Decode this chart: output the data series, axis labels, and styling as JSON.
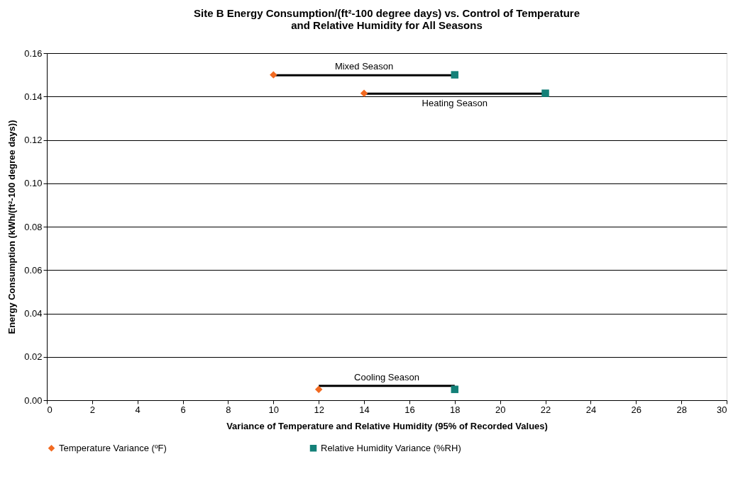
{
  "chart_data": {
    "type": "scatter",
    "title": "Site B Energy Consumption/(ft²-100 degree days) vs. Control of Temperature and Relative Humidity for All Seasons",
    "xlabel": "Variance of Temperature and Relative Humidity (95% of Recorded Values)",
    "ylabel": "Energy Consumption (kWh/(ft²-100 degree days))",
    "series": [
      {
        "name": "Temperature Variance (ºF)",
        "color": "#f26a21",
        "marker": "diamond",
        "x": [
          10,
          14,
          12
        ],
        "values": [
          0.15,
          0.1415,
          0.005
        ]
      },
      {
        "name": "Relative Humidity Variance (%RH)",
        "color": "#138078",
        "marker": "square",
        "x": [
          18,
          22,
          18
        ],
        "values": [
          0.15,
          0.1415,
          0.005
        ]
      },
      {
        "type": "line",
        "color": "#000000",
        "marker": "none",
        "line_style": "solid",
        "x": [
          10,
          18
        ],
        "values": [
          0.1498,
          0.1498
        ]
      },
      {
        "type": "line",
        "color": "#000000",
        "marker": "none",
        "line_style": "solid",
        "x": [
          14,
          22
        ],
        "values": [
          0.1413,
          0.1413
        ]
      },
      {
        "type": "line",
        "color": "#000000",
        "marker": "none",
        "line_style": "solid",
        "x": [
          12,
          18
        ],
        "values": [
          0.0066,
          0.0066
        ]
      }
    ],
    "annotations": [
      {
        "text": "Mixed Season",
        "x": 14,
        "y": 0.1498
      },
      {
        "text": "Heating Season",
        "x": 18,
        "y": 0.1413
      },
      {
        "text": "Cooling Season",
        "x": 15,
        "y": 0.0066
      }
    ],
    "xlim": [
      0,
      30
    ],
    "xticks": [
      0,
      2,
      4,
      6,
      8,
      10,
      12,
      14,
      16,
      18,
      20,
      22,
      24,
      26,
      28,
      30
    ],
    "ylim": [
      0,
      0.16
    ],
    "yticks": [
      {
        "value": 0,
        "label": "0.00"
      },
      {
        "value": 0.02,
        "label": "0.02"
      },
      {
        "value": 0.04,
        "label": "0.04"
      },
      {
        "value": 0.06,
        "label": "0.06"
      },
      {
        "value": 0.08,
        "label": "0.08"
      },
      {
        "value": 0.1,
        "label": "0.10"
      },
      {
        "value": 0.12,
        "label": "0.12"
      },
      {
        "value": 0.14,
        "label": "0.14"
      },
      {
        "value": 0.16,
        "label": "0.16"
      }
    ],
    "grid": "y",
    "legend": "bottom"
  }
}
